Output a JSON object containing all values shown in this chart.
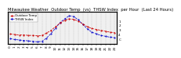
{
  "title": "Milwaukee Weather  Outdoor Temp  (vs)  THSW Index  per Hour  (Last 24 Hours)",
  "hours": [
    0,
    1,
    2,
    3,
    4,
    5,
    6,
    7,
    8,
    9,
    10,
    11,
    12,
    13,
    14,
    15,
    16,
    17,
    18,
    19,
    20,
    21,
    22,
    23
  ],
  "temp": [
    32,
    31,
    30,
    30,
    29,
    29,
    28,
    29,
    34,
    40,
    48,
    56,
    62,
    65,
    64,
    60,
    54,
    48,
    44,
    42,
    40,
    38,
    36,
    35
  ],
  "thsw": [
    22,
    20,
    19,
    18,
    17,
    16,
    15,
    16,
    23,
    33,
    45,
    57,
    65,
    72,
    70,
    63,
    53,
    43,
    36,
    32,
    29,
    27,
    25,
    24
  ],
  "temp_color": "#cc0000",
  "thsw_color": "#0000cc",
  "grid_color": "#999999",
  "bg_color": "#ffffff",
  "plot_bg_color": "#f0f0f0",
  "ylim": [
    10,
    80
  ],
  "yticks_right": [
    10,
    20,
    30,
    40,
    50,
    60,
    70,
    80
  ],
  "ytick_labels_right": [
    "",
    "C",
    "4",
    "3",
    "2",
    "1",
    "",
    ""
  ],
  "title_fontsize": 3.8,
  "tick_fontsize": 3.0,
  "legend_temp": "Outdoor Temp",
  "legend_thsw": "THSW Index",
  "legend_fontsize": 2.8
}
